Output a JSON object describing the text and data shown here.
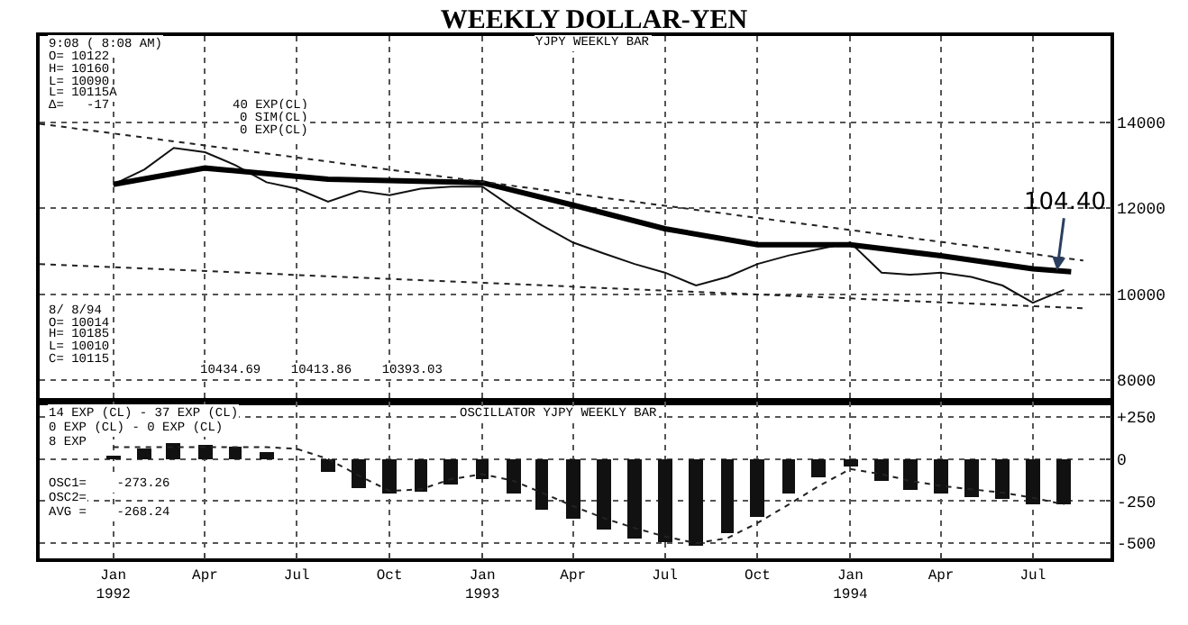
{
  "chart_data": [
    {
      "type": "line",
      "title": "WEEKLY DOLLAR-YEN",
      "xlim": [
        "1991-10-20",
        "1994-09-16"
      ],
      "ylim": [
        7500,
        16000
      ],
      "yticks": [
        8000,
        10000,
        12000,
        14000
      ],
      "xticks": [
        {
          "value": "1992-01-01",
          "label": null
        },
        {
          "value": "1992-04-01",
          "label": null
        },
        {
          "value": "1992-07-01",
          "label": null
        },
        {
          "value": "1992-10-01",
          "label": null
        },
        {
          "value": "1993-01-01",
          "label": null
        },
        {
          "value": "1993-04-01",
          "label": null
        },
        {
          "value": "1993-07-01",
          "label": null
        },
        {
          "value": "1993-10-01",
          "label": null
        },
        {
          "value": "1994-01-01",
          "label": null
        },
        {
          "value": "1994-04-01",
          "label": null
        },
        {
          "value": "1994-07-01",
          "label": null
        }
      ],
      "tick_labels": "y",
      "grid": true,
      "series": [
        {
          "color": "#111111",
          "line_style": "solid",
          "x": [
            "1992-01",
            "1992-02",
            "1992-03",
            "1992-04",
            "1992-05",
            "1992-06",
            "1992-07",
            "1992-08",
            "1992-09",
            "1992-10",
            "1992-11",
            "1992-12",
            "1993-01",
            "1993-02",
            "1993-03",
            "1993-04",
            "1993-05",
            "1993-06",
            "1993-07",
            "1993-08",
            "1993-09",
            "1993-10",
            "1993-11",
            "1993-12",
            "1994-01",
            "1994-02",
            "1994-03",
            "1994-04",
            "1994-05",
            "1994-06",
            "1994-07",
            "1994-08"
          ],
          "values": [
            12550,
            12900,
            13400,
            13300,
            13000,
            12600,
            12450,
            12150,
            12400,
            12300,
            12450,
            12500,
            12500,
            12000,
            11600,
            11200,
            10950,
            10700,
            10500,
            10200,
            10400,
            10700,
            10900,
            11050,
            11200,
            10500,
            10450,
            10500,
            10400,
            10200,
            9800,
            10100
          ]
        },
        {
          "color": "#000000",
          "line_style": "solid",
          "x": [
            "1992-01",
            "1992-04",
            "1992-08",
            "1993-01",
            "1993-04",
            "1993-07",
            "1993-10",
            "1994-01",
            "1994-04",
            "1994-07",
            "1994-08-08"
          ],
          "values": [
            12550,
            12930,
            12670,
            12590,
            12070,
            11520,
            11150,
            11150,
            10890,
            10590,
            10520
          ]
        },
        {
          "color": "#222222",
          "line_style": "dotted",
          "x": [
            "1991-10-20",
            "1994-08-20"
          ],
          "values": [
            13960,
            10780
          ]
        },
        {
          "color": "#222222",
          "line_style": "dotted",
          "x": [
            "1991-10-20",
            "1994-08-20"
          ],
          "values": [
            10700,
            9670
          ]
        }
      ],
      "annotations": [
        "9:08 ( 8:08 AM)",
        "YJPY WEEKLY BAR",
        "O= 10122\nH= 10160\nL= 10090\nL= 10115A\nΔ=   -17",
        "40 EXP(CL)\n0 SIM(CL)\n0 EXP(CL)",
        "8/ 8/94\nO= 10014\nH= 10185\nL= 10010\nC= 10115",
        "10434.69    10413.86    10393.03",
        {
          "text": "104.40",
          "x": "1994-07-25",
          "y": 10550
        }
      ]
    },
    {
      "type": "bar",
      "xlim": [
        "1991-10-20",
        "1994-09-16"
      ],
      "ylim": [
        -590,
        340
      ],
      "yticks": [
        {
          "value": 250,
          "label": "+250"
        },
        0,
        -250,
        -500
      ],
      "xticks": [
        {
          "value": "1992-01-01",
          "label": "Jan\n1992"
        },
        {
          "value": "1992-04-01",
          "label": "Apr"
        },
        {
          "value": "1992-07-01",
          "label": "Jul"
        },
        {
          "value": "1992-10-01",
          "label": "Oct"
        },
        {
          "value": "1993-01-01",
          "label": "Jan\n1993"
        },
        {
          "value": "1993-04-01",
          "label": "Apr"
        },
        {
          "value": "1993-07-01",
          "label": "Jul"
        },
        {
          "value": "1993-10-01",
          "label": "Oct"
        },
        {
          "value": "1994-01-01",
          "label": "Jan\n1994"
        },
        {
          "value": "1994-04-01",
          "label": "Apr"
        },
        {
          "value": "1994-07-01",
          "label": "Jul"
        }
      ],
      "grid": true,
      "series": [
        {
          "type": "bar",
          "color": "#111111",
          "x": [
            "1992-01",
            "1992-02",
            "1992-03",
            "1992-04",
            "1992-05",
            "1992-06",
            "1992-07",
            "1992-08",
            "1992-09",
            "1992-10",
            "1992-11",
            "1992-12",
            "1993-01",
            "1993-02",
            "1993-03",
            "1993-04",
            "1993-05",
            "1993-06",
            "1993-07",
            "1993-08",
            "1993-09",
            "1993-10",
            "1993-11",
            "1993-12",
            "1994-01",
            "1994-02",
            "1994-03",
            "1994-04",
            "1994-05",
            "1994-06",
            "1994-07",
            "1994-08"
          ],
          "values": [
            10,
            60,
            90,
            80,
            70,
            40,
            0,
            -80,
            -170,
            -210,
            -190,
            -150,
            -120,
            -200,
            -300,
            -360,
            -420,
            -470,
            -490,
            -520,
            -440,
            -340,
            -210,
            -110,
            -50,
            -130,
            -180,
            -210,
            -230,
            -240,
            -270,
            -270
          ]
        },
        {
          "type": "line",
          "color": "#222222",
          "line_style": "dotted",
          "x": [
            "1992-01",
            "1992-02",
            "1992-03",
            "1992-04",
            "1992-05",
            "1992-06",
            "1992-07",
            "1992-08",
            "1992-09",
            "1992-10",
            "1992-11",
            "1992-12",
            "1993-01",
            "1993-02",
            "1993-03",
            "1993-04",
            "1993-05",
            "1993-06",
            "1993-07",
            "1993-08",
            "1993-09",
            "1993-10",
            "1993-11",
            "1993-12",
            "1994-01",
            "1994-02",
            "1994-03",
            "1994-04",
            "1994-05",
            "1994-06",
            "1994-07",
            "1994-08"
          ],
          "values": [
            70,
            70,
            70,
            70,
            70,
            70,
            60,
            0,
            -100,
            -190,
            -180,
            -120,
            -90,
            -130,
            -200,
            -280,
            -350,
            -410,
            -460,
            -500,
            -470,
            -380,
            -270,
            -160,
            -60,
            -90,
            -130,
            -160,
            -180,
            -200,
            -230,
            -270
          ]
        }
      ],
      "annotations": [
        "OSCILLATOR YJPY WEEKLY BAR",
        "14 EXP (CL) - 37 EXP (CL)\n0 EXP (CL) - 0 EXP (CL)\n8 EXP",
        "OSC1=    -273.26\nOSC2=\nAVG =    -268.24"
      ]
    }
  ]
}
